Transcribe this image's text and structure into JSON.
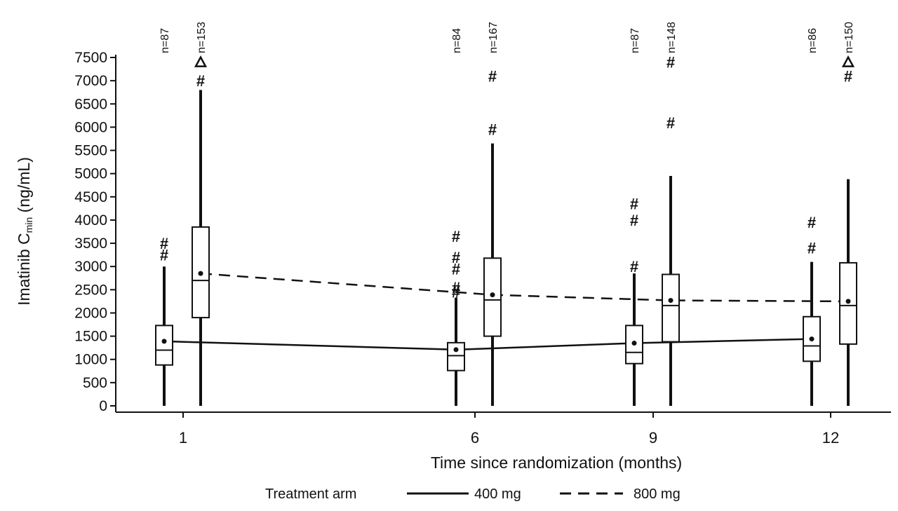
{
  "chart_data": {
    "type": "box",
    "ylabel_main": "Imatinib C",
    "ylabel_sub": "min",
    "ylabel_unit": " (ng/mL)",
    "xlabel": "Time since randomization (months)",
    "ylim": [
      0,
      7500
    ],
    "yticks": [
      "0",
      "500",
      "1000",
      "1500",
      "2000",
      "2500",
      "3000",
      "3500",
      "4000",
      "4500",
      "5000",
      "5500",
      "6000",
      "6500",
      "7000",
      "7500"
    ],
    "x_categories": [
      "1",
      "6",
      "9",
      "12"
    ],
    "legend": {
      "title": "Treatment arm",
      "entries": [
        {
          "label": "400 mg",
          "style": "solid"
        },
        {
          "label": "800 mg",
          "style": "dashed"
        }
      ]
    },
    "series": [
      {
        "name": "400 mg",
        "line_style": "solid",
        "boxes": [
          {
            "x": "1",
            "n": "n=87",
            "min": 0,
            "q1": 880,
            "median": 1200,
            "q3": 1730,
            "max": 3000,
            "mean": 1390,
            "outliers": [
              3250,
              3500
            ]
          },
          {
            "x": "6",
            "n": "n=84",
            "min": 0,
            "q1": 760,
            "median": 1080,
            "q3": 1360,
            "max": 2330,
            "mean": 1210,
            "outliers": [
              2450,
              2550,
              2950,
              3200,
              3650
            ]
          },
          {
            "x": "9",
            "n": "n=87",
            "min": 0,
            "q1": 910,
            "median": 1150,
            "q3": 1730,
            "max": 2850,
            "mean": 1350,
            "outliers": [
              3000,
              4000,
              4350
            ]
          },
          {
            "x": "12",
            "n": "n=86",
            "min": 0,
            "q1": 960,
            "median": 1290,
            "q3": 1920,
            "max": 3100,
            "mean": 1440,
            "outliers": [
              3400,
              3950
            ]
          }
        ]
      },
      {
        "name": "800 mg",
        "line_style": "dashed",
        "boxes": [
          {
            "x": "1",
            "n": "n=153",
            "min": 0,
            "q1": 1900,
            "median": 2700,
            "q3": 3850,
            "max": 6800,
            "mean": 2850,
            "outliers": [
              7000
            ],
            "triangle": 7400
          },
          {
            "x": "6",
            "n": "n=167",
            "min": 0,
            "q1": 1500,
            "median": 2280,
            "q3": 3180,
            "max": 5650,
            "mean": 2390,
            "outliers": [
              5950,
              7100
            ]
          },
          {
            "x": "9",
            "n": "n=148",
            "min": 0,
            "q1": 1380,
            "median": 2160,
            "q3": 2830,
            "max": 4950,
            "mean": 2270,
            "outliers": [
              6100,
              7400
            ]
          },
          {
            "x": "12",
            "n": "n=150",
            "min": 0,
            "q1": 1330,
            "median": 2160,
            "q3": 3080,
            "max": 4880,
            "mean": 2250,
            "outliers": [
              7100
            ],
            "triangle": 7400
          }
        ]
      }
    ]
  }
}
